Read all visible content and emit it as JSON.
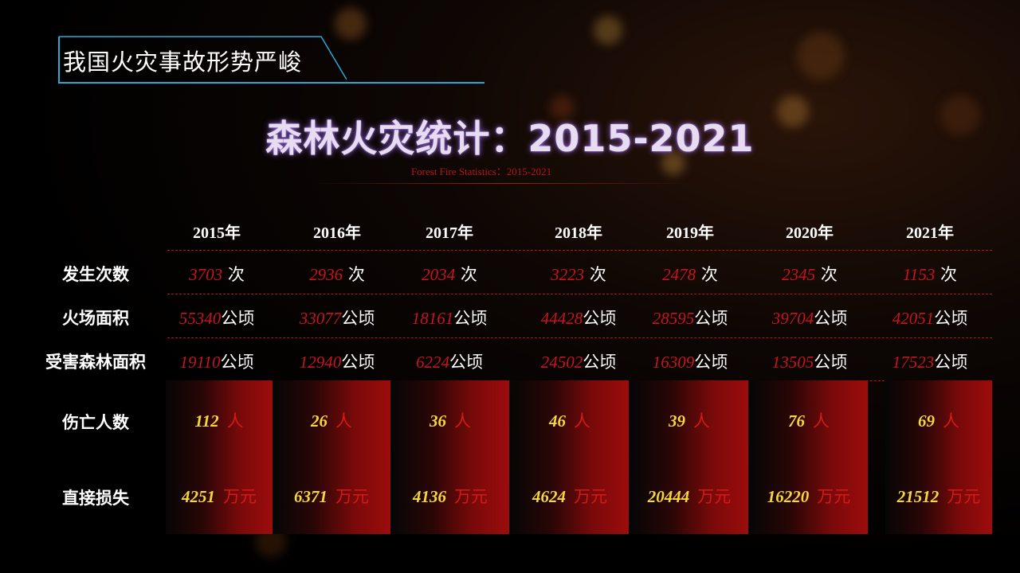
{
  "section_tag": "我国火灾事故形势严峻",
  "title": "森林火灾统计：2015-2021",
  "subtitle": "Forest Fire Statistics：2015-2021",
  "years": [
    "2015年",
    "2016年",
    "2017年",
    "2018年",
    "2019年",
    "2020年",
    "2021年"
  ],
  "rows": {
    "occurrences": {
      "label": "发生次数",
      "unit": "次",
      "values": [
        "3703",
        "2936",
        "2034",
        "3223",
        "2478",
        "2345",
        "1153"
      ]
    },
    "fire_area": {
      "label": "火场面积",
      "unit": "公顷",
      "values": [
        "55340",
        "33077",
        "18161",
        "44428",
        "28595",
        "39704",
        "42051"
      ]
    },
    "forest_damage_area": {
      "label": "受害森林面积",
      "unit": "公顷",
      "values": [
        "19110",
        "12940",
        "6224",
        "24502",
        "16309",
        "13505",
        "17523"
      ]
    },
    "casualties": {
      "label": "伤亡人数",
      "unit": "人",
      "values": [
        "112",
        "26",
        "36",
        "46",
        "39",
        "76",
        "69"
      ]
    },
    "direct_loss": {
      "label": "直接损失",
      "unit": "万元",
      "values": [
        "4251",
        "6371",
        "4136",
        "4624",
        "20444",
        "16220",
        "21512"
      ]
    }
  },
  "colors": {
    "accent_red": "#c8141c",
    "highlight_yellow": "#f4d83c",
    "tag_border": "#29a9d6",
    "title_glow": "#b78cff"
  }
}
